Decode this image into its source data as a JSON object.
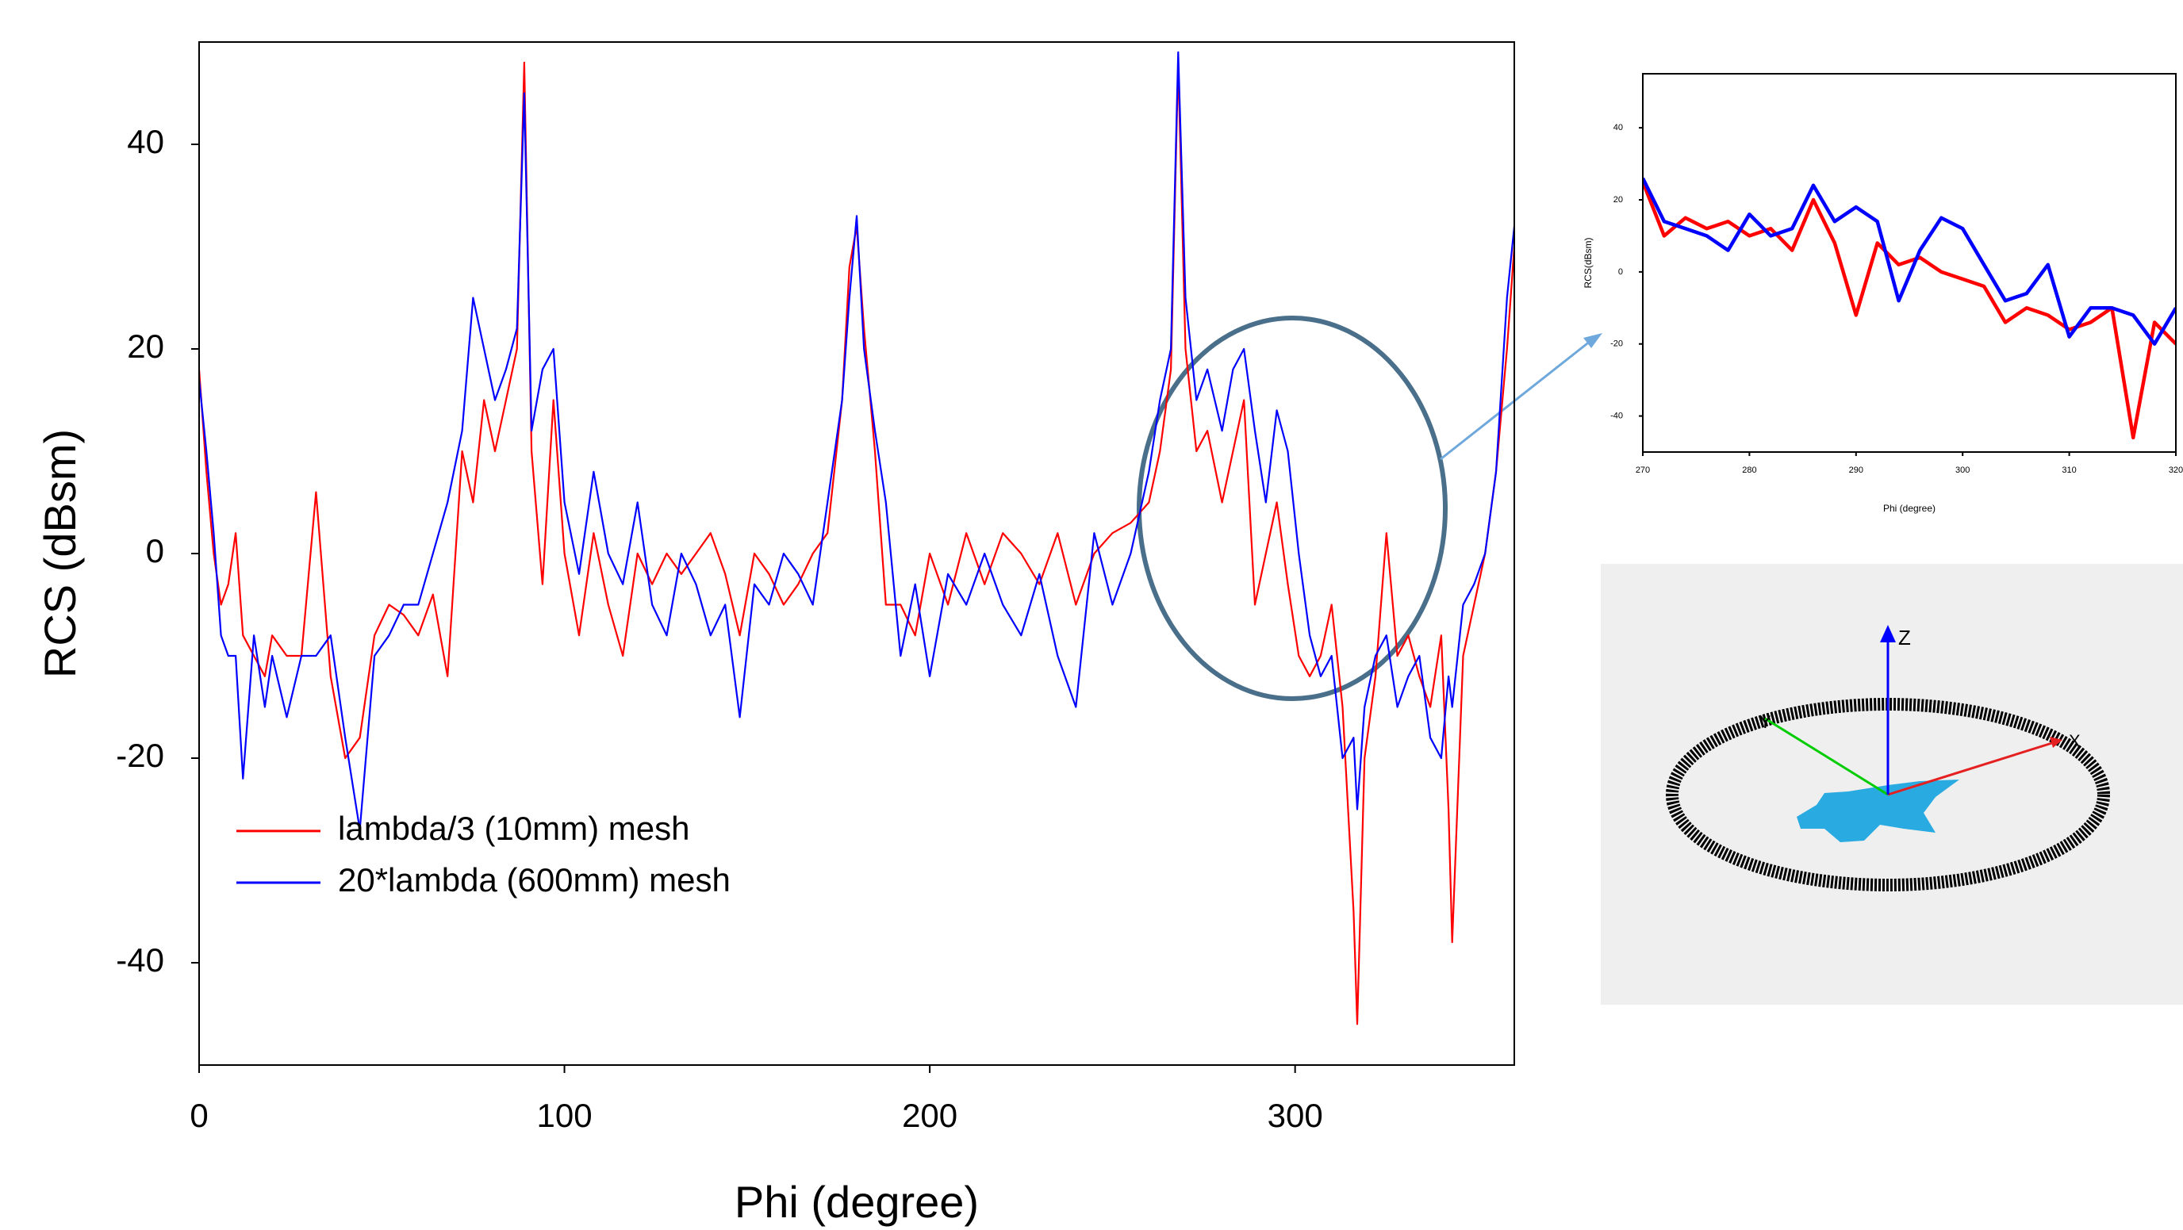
{
  "chart_data": [
    {
      "type": "line",
      "xlabel": "Phi (degree)",
      "ylabel": "RCS (dBsm)",
      "xlim": [
        0,
        360
      ],
      "ylim": [
        -50,
        50
      ],
      "xticks": [
        0,
        100,
        200,
        300
      ],
      "yticks": [
        -40,
        -20,
        0,
        20,
        40
      ],
      "grid": false,
      "legend": "lower left",
      "x": [
        0,
        2,
        4,
        6,
        8,
        10,
        12,
        15,
        18,
        20,
        24,
        28,
        32,
        36,
        40,
        44,
        48,
        52,
        56,
        60,
        64,
        68,
        72,
        75,
        78,
        81,
        84,
        87,
        89,
        91,
        94,
        97,
        100,
        104,
        108,
        112,
        116,
        120,
        124,
        128,
        132,
        136,
        140,
        144,
        148,
        152,
        156,
        160,
        164,
        168,
        172,
        176,
        178,
        180,
        182,
        185,
        188,
        192,
        196,
        200,
        205,
        210,
        215,
        220,
        225,
        230,
        235,
        240,
        245,
        250,
        255,
        260,
        263,
        266,
        268,
        270,
        273,
        276,
        280,
        283,
        286,
        289,
        292,
        295,
        298,
        301,
        304,
        307,
        310,
        313,
        316,
        317,
        319,
        322,
        325,
        328,
        331,
        334,
        337,
        340,
        342,
        343,
        346,
        349,
        352,
        355,
        358,
        360
      ],
      "series": [
        {
          "name": "lambda/3 (10mm) mesh",
          "color": "#ff0000",
          "values": [
            18,
            8,
            0,
            -5,
            -3,
            2,
            -8,
            -10,
            -12,
            -8,
            -10,
            -10,
            6,
            -12,
            -20,
            -18,
            -8,
            -5,
            -6,
            -8,
            -4,
            -12,
            10,
            5,
            15,
            10,
            15,
            20,
            48,
            10,
            -3,
            15,
            0,
            -8,
            2,
            -5,
            -10,
            0,
            -3,
            0,
            -2,
            0,
            2,
            -2,
            -8,
            0,
            -2,
            -5,
            -3,
            0,
            2,
            15,
            28,
            32,
            22,
            10,
            -5,
            -5,
            -8,
            0,
            -5,
            2,
            -3,
            2,
            0,
            -3,
            2,
            -5,
            0,
            2,
            3,
            5,
            10,
            18,
            48,
            20,
            10,
            12,
            5,
            10,
            15,
            -5,
            0,
            5,
            -3,
            -10,
            -12,
            -10,
            -5,
            -15,
            -35,
            -46,
            -20,
            -12,
            2,
            -10,
            -8,
            -12,
            -15,
            -8,
            -25,
            -38,
            -10,
            -5,
            0,
            8,
            20,
            30
          ]
        },
        {
          "name": "20*lambda (600mm) mesh",
          "color": "#0000ff",
          "values": [
            17,
            10,
            2,
            -8,
            -10,
            -10,
            -22,
            -8,
            -15,
            -10,
            -16,
            -10,
            -10,
            -8,
            -18,
            -27,
            -10,
            -8,
            -5,
            -5,
            0,
            5,
            12,
            25,
            20,
            15,
            18,
            22,
            45,
            12,
            18,
            20,
            5,
            -2,
            8,
            0,
            -3,
            5,
            -5,
            -8,
            0,
            -3,
            -8,
            -5,
            -16,
            -3,
            -5,
            0,
            -2,
            -5,
            5,
            15,
            25,
            33,
            20,
            12,
            5,
            -10,
            -3,
            -12,
            -2,
            -5,
            0,
            -5,
            -8,
            -2,
            -10,
            -15,
            2,
            -5,
            0,
            8,
            15,
            20,
            49,
            25,
            15,
            18,
            12,
            18,
            20,
            12,
            5,
            14,
            10,
            0,
            -8,
            -12,
            -10,
            -20,
            -18,
            -25,
            -15,
            -10,
            -8,
            -15,
            -12,
            -10,
            -18,
            -20,
            -12,
            -15,
            -5,
            -3,
            0,
            8,
            25,
            32
          ]
        }
      ]
    },
    {
      "type": "line",
      "xlabel": "Phi (degree)",
      "ylabel": "RCS(dBsm)",
      "xlim": [
        270,
        320
      ],
      "ylim": [
        -50,
        55
      ],
      "xticks": [
        270,
        280,
        290,
        300,
        310,
        320
      ],
      "yticks": [
        -40,
        -20,
        0,
        20,
        40
      ],
      "grid": false,
      "x": [
        270,
        272,
        274,
        276,
        278,
        280,
        282,
        284,
        286,
        288,
        290,
        292,
        294,
        296,
        298,
        300,
        302,
        304,
        306,
        308,
        310,
        312,
        314,
        316,
        318,
        320
      ],
      "series": [
        {
          "color": "#ff0000",
          "values": [
            25,
            10,
            15,
            12,
            14,
            10,
            12,
            6,
            20,
            8,
            -12,
            8,
            2,
            4,
            0,
            -2,
            -4,
            -14,
            -10,
            -12,
            -16,
            -14,
            -10,
            -46,
            -14,
            -20
          ]
        },
        {
          "color": "#0000ff",
          "values": [
            26,
            14,
            12,
            10,
            6,
            16,
            10,
            12,
            24,
            14,
            18,
            14,
            -8,
            6,
            15,
            12,
            2,
            -8,
            -6,
            2,
            -18,
            -10,
            -10,
            -12,
            -20,
            -10
          ]
        }
      ]
    }
  ],
  "diagram": {
    "axis_labels": {
      "z": "Z",
      "y": "Y",
      "x": "X"
    }
  }
}
